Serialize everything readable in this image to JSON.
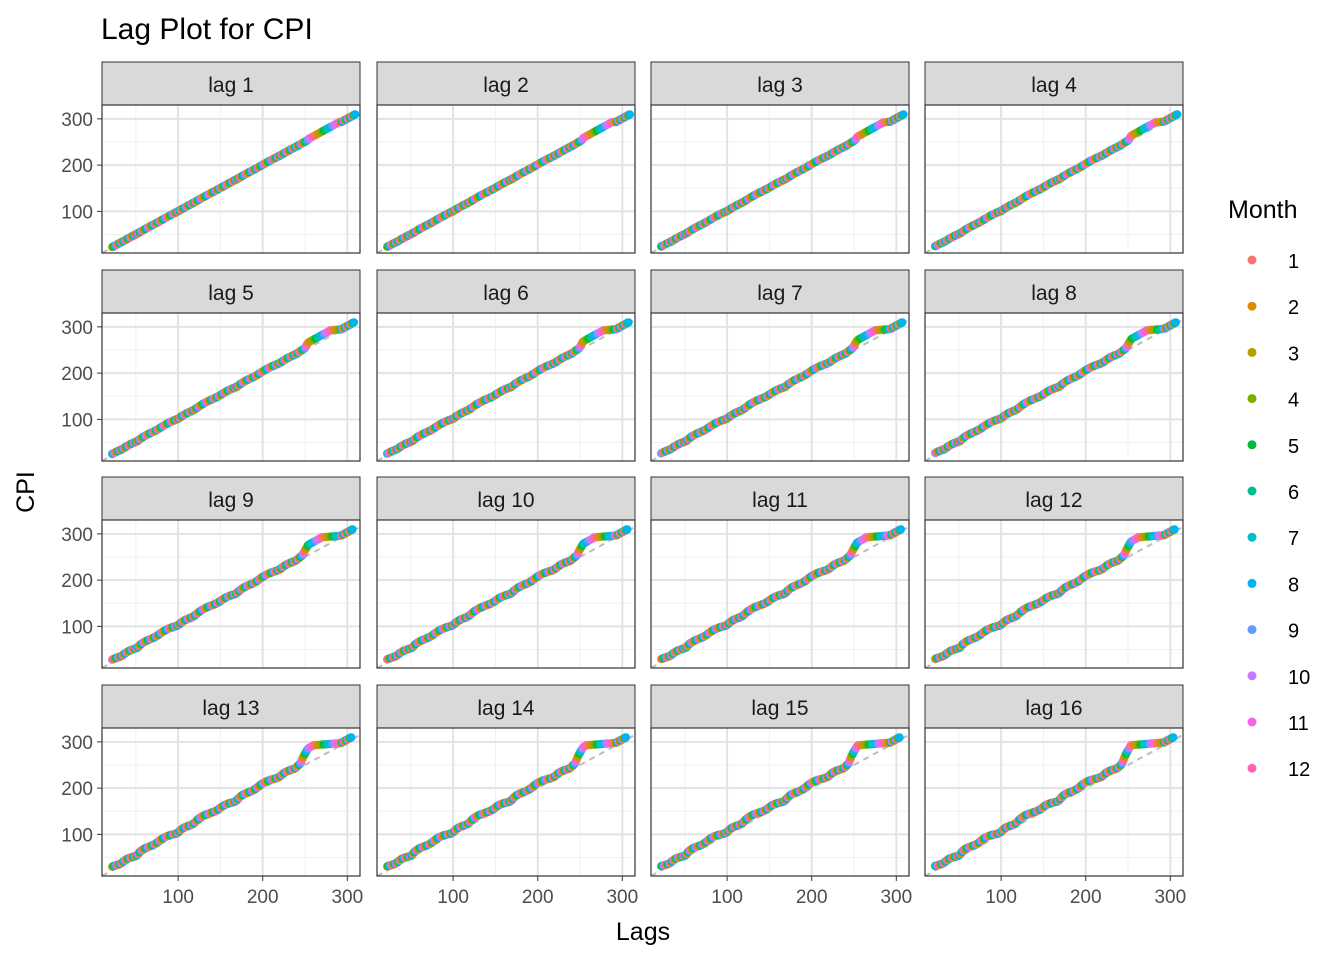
{
  "chart_data": {
    "type": "scatter",
    "title": "Lag Plot for CPI",
    "xlabel": "Lags",
    "ylabel": "CPI",
    "xlim": [
      10,
      315
    ],
    "ylim": [
      10,
      330
    ],
    "x_ticks": [
      100,
      200,
      300
    ],
    "y_ticks": [
      100,
      200,
      300
    ],
    "grid": true,
    "legend": {
      "title": "Month",
      "position": "right",
      "entries": [
        {
          "label": "1",
          "color": "#F8766D"
        },
        {
          "label": "2",
          "color": "#DE8C00"
        },
        {
          "label": "3",
          "color": "#B79F00"
        },
        {
          "label": "4",
          "color": "#7CAE00"
        },
        {
          "label": "5",
          "color": "#00BA38"
        },
        {
          "label": "6",
          "color": "#00C08B"
        },
        {
          "label": "7",
          "color": "#00BFC4"
        },
        {
          "label": "8",
          "color": "#00B4F0"
        },
        {
          "label": "9",
          "color": "#619CFF"
        },
        {
          "label": "10",
          "color": "#C77CFF"
        },
        {
          "label": "11",
          "color": "#F564E3"
        },
        {
          "label": "12",
          "color": "#FF64B0"
        }
      ]
    },
    "reference_line": "y = x (dashed grey)",
    "panels": [
      {
        "label": "lag 1",
        "lag": 1
      },
      {
        "label": "lag 2",
        "lag": 2
      },
      {
        "label": "lag 3",
        "lag": 3
      },
      {
        "label": "lag 4",
        "lag": 4
      },
      {
        "label": "lag 5",
        "lag": 5
      },
      {
        "label": "lag 6",
        "lag": 6
      },
      {
        "label": "lag 7",
        "lag": 7
      },
      {
        "label": "lag 8",
        "lag": 8
      },
      {
        "label": "lag 9",
        "lag": 9
      },
      {
        "label": "lag 10",
        "lag": 10
      },
      {
        "label": "lag 11",
        "lag": 11
      },
      {
        "label": "lag 12",
        "lag": 12
      },
      {
        "label": "lag 13",
        "lag": 13
      },
      {
        "label": "lag 14",
        "lag": 14
      },
      {
        "label": "lag 15",
        "lag": 15
      },
      {
        "label": "lag 16",
        "lag": 16
      }
    ],
    "series_approx": {
      "description": "Monthly CPI, lag plot of CPI(t) vs CPI(t-k)",
      "cpi_range": [
        22,
        310
      ],
      "steep_rise": {
        "from": [
          262,
          255
        ],
        "to": [
          275,
          292
        ]
      }
    }
  }
}
